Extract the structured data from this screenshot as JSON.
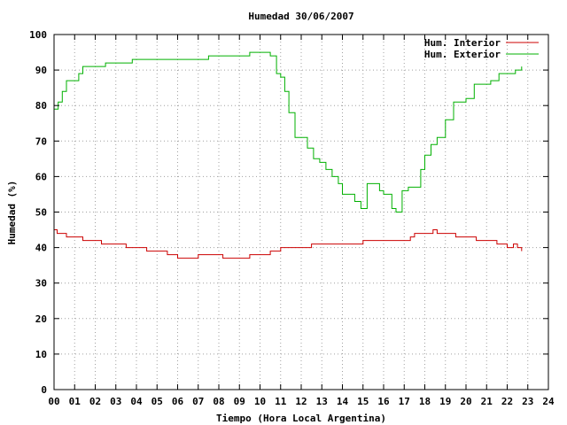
{
  "chart_data": {
    "type": "line",
    "title": "Humedad 30/06/2007",
    "xlabel": "Tiempo (Hora Local Argentina)",
    "ylabel": "Humedad (%)",
    "xlim": [
      0,
      24
    ],
    "ylim": [
      0,
      100
    ],
    "x_ticks": [
      "00",
      "01",
      "02",
      "03",
      "04",
      "05",
      "06",
      "07",
      "08",
      "09",
      "10",
      "11",
      "12",
      "13",
      "14",
      "15",
      "16",
      "17",
      "18",
      "19",
      "20",
      "21",
      "22",
      "23",
      "24"
    ],
    "y_ticks": [
      0,
      10,
      20,
      30,
      40,
      50,
      60,
      70,
      80,
      90,
      100
    ],
    "grid": true,
    "legend_position": "top-right",
    "series": [
      {
        "name": "Hum. Interior",
        "color": "#cc0000",
        "x": [
          0,
          0.15,
          0.3,
          0.6,
          1.4,
          2.3,
          3.5,
          4.5,
          5.5,
          6.0,
          6.5,
          7.0,
          7.5,
          8.0,
          8.2,
          8.5,
          9.0,
          9.5,
          10.0,
          10.5,
          11.0,
          12.0,
          12.5,
          13.0,
          14.0,
          14.5,
          15.0,
          15.5,
          16.0,
          16.5,
          17.0,
          17.3,
          17.5,
          18.0,
          18.4,
          18.6,
          19.0,
          19.5,
          20.0,
          20.5,
          21.0,
          21.5,
          22.0,
          22.3,
          22.5,
          22.7
        ],
        "y": [
          45,
          44,
          44,
          43,
          42,
          41,
          40,
          39,
          38,
          37,
          37,
          38,
          38,
          38,
          37,
          37,
          37,
          38,
          38,
          39,
          40,
          40,
          41,
          41,
          41,
          41,
          42,
          42,
          42,
          42,
          42,
          43,
          44,
          44,
          45,
          44,
          44,
          43,
          43,
          42,
          42,
          41,
          40,
          41,
          40,
          39
        ]
      },
      {
        "name": "Hum. Exterior",
        "color": "#00b000",
        "x": [
          0,
          0.2,
          0.4,
          0.6,
          0.8,
          1.0,
          1.2,
          1.4,
          1.6,
          2.0,
          2.5,
          3.0,
          3.4,
          3.8,
          4.2,
          4.6,
          5.0,
          5.5,
          6.0,
          6.5,
          7.0,
          7.5,
          8.0,
          8.5,
          9.0,
          9.5,
          10.0,
          10.5,
          10.8,
          11.0,
          11.2,
          11.4,
          11.7,
          12.0,
          12.3,
          12.6,
          12.9,
          13.2,
          13.5,
          13.8,
          14.0,
          14.3,
          14.6,
          14.9,
          15.2,
          15.5,
          15.8,
          16.0,
          16.2,
          16.4,
          16.6,
          16.9,
          17.2,
          17.5,
          17.8,
          18.0,
          18.3,
          18.6,
          19.0,
          19.4,
          19.8,
          20.0,
          20.4,
          20.8,
          21.2,
          21.6,
          22.0,
          22.4,
          22.7
        ],
        "y": [
          79,
          81,
          84,
          87,
          87,
          87,
          89,
          91,
          91,
          91,
          92,
          92,
          92,
          93,
          93,
          93,
          93,
          93,
          93,
          93,
          93,
          94,
          94,
          94,
          94,
          95,
          95,
          94,
          89,
          88,
          84,
          78,
          71,
          71,
          68,
          65,
          64,
          62,
          60,
          58,
          55,
          55,
          53,
          51,
          58,
          58,
          56,
          55,
          55,
          51,
          50,
          56,
          57,
          57,
          62,
          66,
          69,
          71,
          76,
          81,
          81,
          82,
          86,
          86,
          87,
          89,
          89,
          90,
          91
        ]
      }
    ]
  }
}
